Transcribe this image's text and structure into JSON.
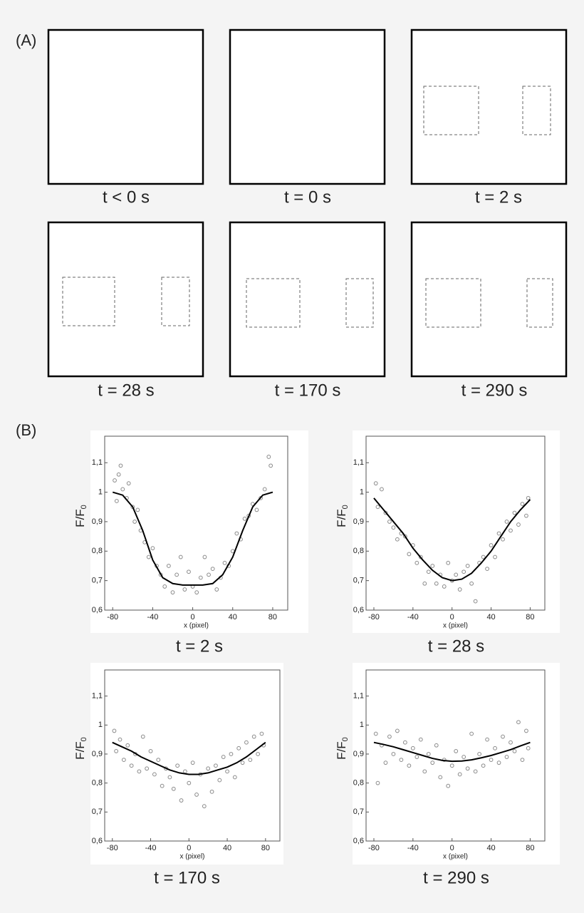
{
  "panel_a": {
    "label": "(A)",
    "frames": [
      "t < 0 s",
      "t = 0 s",
      "t = 2 s",
      "t = 28 s",
      "t = 170 s",
      "t = 290 s"
    ]
  },
  "panel_b": {
    "label": "(B)"
  },
  "chart_data": [
    {
      "type": "scatter",
      "caption": "t = 2 s",
      "xlabel": "x (pixel)",
      "ylabel": {
        "main": "F/F",
        "sub": "0"
      },
      "xlim": [
        -88,
        95
      ],
      "ylim": [
        0.6,
        1.19
      ],
      "xticks": [
        -80,
        -40,
        0,
        40,
        80
      ],
      "yticks": [
        {
          "value": 0.6,
          "label": "0,6"
        },
        {
          "value": 0.7,
          "label": "0,7"
        },
        {
          "value": 0.8,
          "label": "0,8"
        },
        {
          "value": 0.9,
          "label": "0,9"
        },
        1,
        {
          "value": 1.1,
          "label": "1,1"
        }
      ],
      "series": [
        {
          "type": "scatter",
          "color": "#8a8a8a",
          "x": [
            -78,
            -76,
            -74,
            -72,
            -70,
            -66,
            -64,
            -60,
            -58,
            -55,
            -52,
            -48,
            -44,
            -40,
            -36,
            -32,
            -28,
            -24,
            -20,
            -16,
            -12,
            -8,
            -4,
            0,
            4,
            8,
            12,
            16,
            20,
            24,
            28,
            32,
            36,
            40,
            44,
            48,
            52,
            56,
            60,
            64,
            68,
            72,
            76,
            78
          ],
          "values": [
            1.04,
            0.97,
            1.06,
            1.09,
            1.01,
            0.98,
            1.03,
            0.95,
            0.9,
            0.94,
            0.87,
            0.83,
            0.78,
            0.81,
            0.75,
            0.72,
            0.68,
            0.75,
            0.66,
            0.72,
            0.78,
            0.67,
            0.73,
            0.68,
            0.66,
            0.71,
            0.78,
            0.72,
            0.74,
            0.67,
            0.71,
            0.76,
            0.75,
            0.8,
            0.86,
            0.84,
            0.91,
            0.92,
            0.96,
            0.94,
            0.98,
            1.01,
            1.12,
            1.09
          ]
        },
        {
          "type": "line",
          "color": "#000000",
          "x": [
            -80,
            -70,
            -60,
            -50,
            -40,
            -30,
            -20,
            -10,
            0,
            10,
            20,
            30,
            40,
            50,
            60,
            70,
            80
          ],
          "values": [
            1.0,
            0.99,
            0.95,
            0.87,
            0.77,
            0.71,
            0.69,
            0.685,
            0.685,
            0.685,
            0.69,
            0.72,
            0.78,
            0.87,
            0.95,
            0.99,
            1.0
          ]
        }
      ]
    },
    {
      "type": "scatter",
      "caption": "t = 28 s",
      "xlabel": "x (pixel)",
      "ylabel": {
        "main": "F/F",
        "sub": "0"
      },
      "xlim": [
        -88,
        95
      ],
      "ylim": [
        0.6,
        1.19
      ],
      "xticks": [
        -80,
        -40,
        0,
        40,
        80
      ],
      "yticks": [
        {
          "value": 0.6,
          "label": "0,6"
        },
        {
          "value": 0.7,
          "label": "0,7"
        },
        {
          "value": 0.8,
          "label": "0,8"
        },
        {
          "value": 0.9,
          "label": "0,9"
        },
        1,
        {
          "value": 1.1,
          "label": "1,1"
        }
      ],
      "series": [
        {
          "type": "scatter",
          "color": "#8a8a8a",
          "x": [
            -78,
            -76,
            -72,
            -68,
            -64,
            -60,
            -56,
            -52,
            -48,
            -44,
            -40,
            -36,
            -32,
            -28,
            -24,
            -20,
            -16,
            -12,
            -8,
            -4,
            0,
            4,
            8,
            12,
            16,
            20,
            24,
            28,
            32,
            36,
            40,
            44,
            48,
            52,
            56,
            60,
            64,
            68,
            72,
            76,
            78
          ],
          "values": [
            1.03,
            0.95,
            1.01,
            0.93,
            0.9,
            0.88,
            0.84,
            0.86,
            0.85,
            0.79,
            0.82,
            0.76,
            0.78,
            0.69,
            0.73,
            0.75,
            0.69,
            0.72,
            0.68,
            0.76,
            0.7,
            0.72,
            0.67,
            0.73,
            0.75,
            0.69,
            0.63,
            0.76,
            0.78,
            0.74,
            0.82,
            0.78,
            0.86,
            0.84,
            0.9,
            0.87,
            0.93,
            0.89,
            0.96,
            0.92,
            0.98
          ]
        },
        {
          "type": "line",
          "color": "#000000",
          "x": [
            -80,
            -70,
            -60,
            -50,
            -40,
            -30,
            -20,
            -10,
            0,
            10,
            20,
            30,
            40,
            50,
            60,
            70,
            80
          ],
          "values": [
            0.98,
            0.94,
            0.9,
            0.86,
            0.81,
            0.77,
            0.735,
            0.71,
            0.7,
            0.705,
            0.725,
            0.76,
            0.8,
            0.85,
            0.9,
            0.94,
            0.975
          ]
        }
      ]
    },
    {
      "type": "scatter",
      "caption": "t = 170 s",
      "xlabel": "x (pixel)",
      "ylabel": {
        "main": "F/F",
        "sub": "0"
      },
      "xlim": [
        -88,
        95
      ],
      "ylim": [
        0.6,
        1.19
      ],
      "xticks": [
        -80,
        -40,
        0,
        40,
        80
      ],
      "yticks": [
        {
          "value": 0.6,
          "label": "0,6"
        },
        {
          "value": 0.7,
          "label": "0,7"
        },
        {
          "value": 0.8,
          "label": "0,8"
        },
        {
          "value": 0.9,
          "label": "0,9"
        },
        1,
        {
          "value": 1.1,
          "label": "1,1"
        }
      ],
      "series": [
        {
          "type": "scatter",
          "color": "#8a8a8a",
          "x": [
            -78,
            -76,
            -72,
            -68,
            -64,
            -60,
            -56,
            -52,
            -48,
            -44,
            -40,
            -36,
            -32,
            -28,
            -24,
            -20,
            -16,
            -12,
            -8,
            -4,
            0,
            4,
            8,
            12,
            16,
            20,
            24,
            28,
            32,
            36,
            40,
            44,
            48,
            52,
            56,
            60,
            64,
            68,
            72,
            76,
            78
          ],
          "values": [
            0.98,
            0.91,
            0.95,
            0.88,
            0.93,
            0.86,
            0.9,
            0.84,
            0.96,
            0.85,
            0.91,
            0.83,
            0.88,
            0.79,
            0.85,
            0.82,
            0.78,
            0.86,
            0.74,
            0.84,
            0.8,
            0.87,
            0.76,
            0.83,
            0.72,
            0.85,
            0.77,
            0.86,
            0.81,
            0.89,
            0.84,
            0.9,
            0.82,
            0.92,
            0.87,
            0.94,
            0.88,
            0.96,
            0.9,
            0.97,
            0.93
          ]
        },
        {
          "type": "line",
          "color": "#000000",
          "x": [
            -80,
            -70,
            -60,
            -50,
            -40,
            -30,
            -20,
            -10,
            0,
            10,
            20,
            30,
            40,
            50,
            60,
            70,
            80
          ],
          "values": [
            0.94,
            0.925,
            0.91,
            0.89,
            0.875,
            0.86,
            0.845,
            0.835,
            0.83,
            0.83,
            0.835,
            0.845,
            0.855,
            0.87,
            0.89,
            0.915,
            0.94
          ]
        }
      ]
    },
    {
      "type": "scatter",
      "caption": "t = 290 s",
      "xlabel": "x (pixel)",
      "ylabel": {
        "main": "F/F",
        "sub": "0"
      },
      "xlim": [
        -88,
        95
      ],
      "ylim": [
        0.6,
        1.19
      ],
      "xticks": [
        -80,
        -40,
        0,
        40,
        80
      ],
      "yticks": [
        {
          "value": 0.6,
          "label": "0,6"
        },
        {
          "value": 0.7,
          "label": "0,7"
        },
        {
          "value": 0.8,
          "label": "0,8"
        },
        {
          "value": 0.9,
          "label": "0,9"
        },
        1,
        {
          "value": 1.1,
          "label": "1,1"
        }
      ],
      "series": [
        {
          "type": "scatter",
          "color": "#8a8a8a",
          "x": [
            -78,
            -76,
            -72,
            -68,
            -64,
            -60,
            -56,
            -52,
            -48,
            -44,
            -40,
            -36,
            -32,
            -28,
            -24,
            -20,
            -16,
            -12,
            -8,
            -4,
            0,
            4,
            8,
            12,
            16,
            20,
            24,
            28,
            32,
            36,
            40,
            44,
            48,
            52,
            56,
            60,
            64,
            68,
            72,
            76,
            78
          ],
          "values": [
            0.97,
            0.8,
            0.93,
            0.87,
            0.96,
            0.9,
            0.98,
            0.88,
            0.94,
            0.86,
            0.92,
            0.89,
            0.95,
            0.84,
            0.9,
            0.87,
            0.93,
            0.82,
            0.88,
            0.79,
            0.86,
            0.91,
            0.83,
            0.89,
            0.85,
            0.97,
            0.84,
            0.9,
            0.86,
            0.95,
            0.88,
            0.92,
            0.87,
            0.96,
            0.89,
            0.94,
            0.91,
            1.01,
            0.88,
            0.98,
            0.92
          ]
        },
        {
          "type": "line",
          "color": "#000000",
          "x": [
            -80,
            -70,
            -60,
            -50,
            -40,
            -30,
            -20,
            -10,
            0,
            10,
            20,
            30,
            40,
            50,
            60,
            70,
            80
          ],
          "values": [
            0.94,
            0.933,
            0.925,
            0.915,
            0.905,
            0.895,
            0.885,
            0.878,
            0.875,
            0.876,
            0.88,
            0.887,
            0.895,
            0.905,
            0.915,
            0.928,
            0.94
          ]
        }
      ]
    }
  ]
}
